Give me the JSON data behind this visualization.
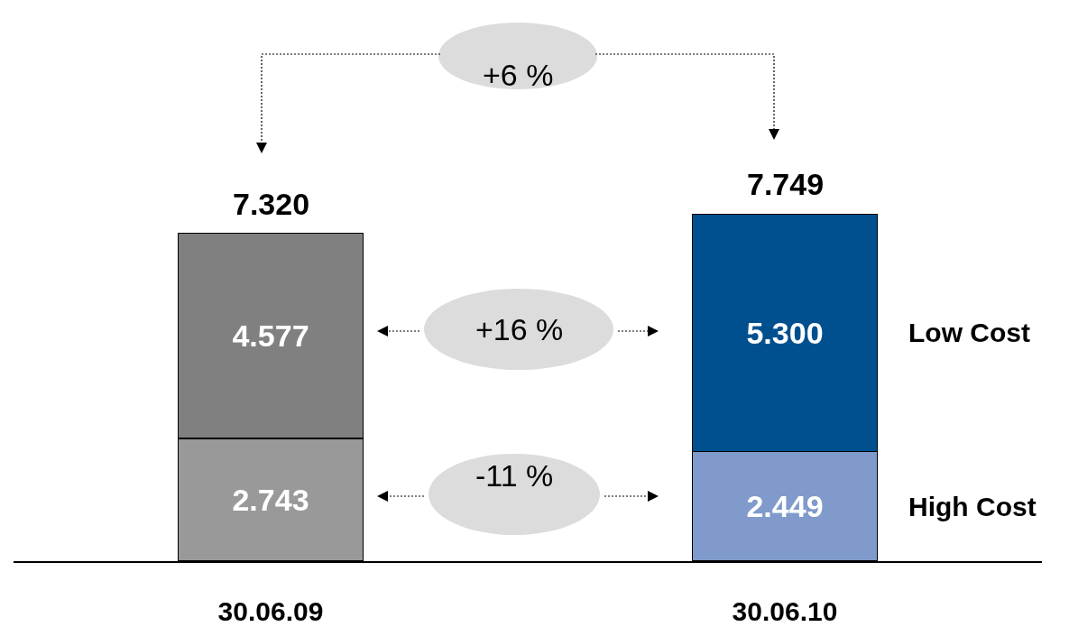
{
  "chart_data": {
    "type": "bar",
    "stacked": true,
    "categories": [
      "30.06.09",
      "30.06.10"
    ],
    "series": [
      {
        "name": "High Cost",
        "colors": [
          "#999999",
          "#7f9acb"
        ],
        "values": [
          2743,
          2449
        ],
        "value_labels": [
          "2.743",
          "2.449"
        ]
      },
      {
        "name": "Low Cost",
        "colors": [
          "#808080",
          "#00508f"
        ],
        "values": [
          4577,
          5300
        ],
        "value_labels": [
          "4.577",
          "5.300"
        ]
      }
    ],
    "totals": [
      "7.320",
      "7.749"
    ],
    "annotations": [
      "+6 %",
      "+16 %",
      "-11 %"
    ],
    "legend": false,
    "grid": false
  }
}
